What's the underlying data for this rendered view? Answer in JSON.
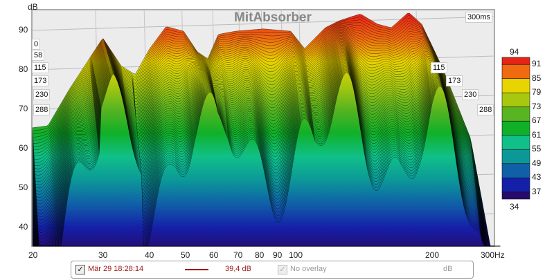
{
  "chart_data": {
    "type": "waterfall",
    "title": "MitAbsorber",
    "ylabel": "dB",
    "xlabel": "Hz",
    "ylim": [
      34,
      95
    ],
    "xlim": [
      20,
      300
    ],
    "xscale": "log",
    "yticks": [
      "90",
      "80",
      "70",
      "60",
      "50",
      "40"
    ],
    "xticks": [
      "20",
      "30",
      "40",
      "50",
      "60",
      "70",
      "80",
      "90",
      "100",
      "200",
      "300Hz"
    ],
    "time_span_label": "300ms",
    "time_labels_left": [
      "0",
      "58",
      "115",
      "173",
      "230",
      "288"
    ],
    "time_labels_right": [
      "115",
      "173",
      "230",
      "288"
    ],
    "envelope": {
      "freq": [
        20,
        21.9,
        24.8,
        30.3,
        33.8,
        36.7,
        40,
        44.1,
        48.9,
        53,
        56.4,
        60,
        66.4,
        78.3,
        92.2,
        100,
        113,
        123,
        139,
        154,
        167,
        185,
        200,
        227,
        267,
        300
      ],
      "db": [
        65.3,
        65.8,
        74.9,
        88.1,
        81,
        78.8,
        85.4,
        91,
        89.8,
        84.6,
        82.8,
        89,
        89.8,
        90.4,
        89.8,
        85.4,
        90.7,
        92.5,
        94.2,
        91.6,
        90.7,
        94.6,
        91.6,
        80.2,
        62.6,
        35.4
      ]
    },
    "colorbar": {
      "max": "94",
      "min": "34",
      "labels": [
        "91",
        "85",
        "79",
        "73",
        "67",
        "61",
        "55",
        "49",
        "43",
        "37"
      ],
      "colors": [
        "#e82418",
        "#f06a10",
        "#e8d400",
        "#a8c810",
        "#58b420",
        "#10b028",
        "#10c088",
        "#0c9898",
        "#1060a8",
        "#1420a8",
        "#280a6c"
      ]
    }
  },
  "legend": {
    "checked": "✓",
    "measurement": "Mär 29 18:28:14",
    "value": "39,4 dB",
    "overlay": "No overlay",
    "unit": "dB"
  }
}
